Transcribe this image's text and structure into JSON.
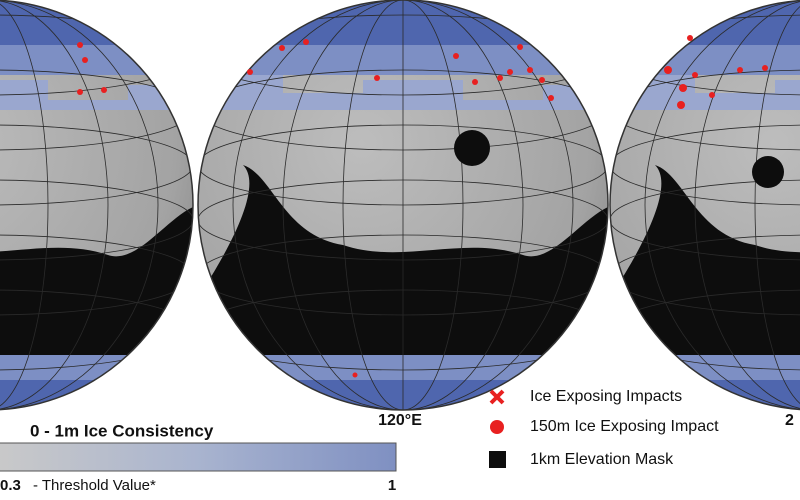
{
  "labels": {
    "longitude_center": "120°E",
    "longitude_right": "2"
  },
  "colorbar": {
    "title": "0 - 1m Ice Consistency",
    "min_label": "0.3",
    "min_text": "- Threshold Value*",
    "max_label": "1"
  },
  "legend": {
    "items": [
      {
        "label": "Ice Exposing Impacts"
      },
      {
        "label": "150m Ice Exposing Impact"
      },
      {
        "label": "1km Elevation Mask"
      }
    ]
  }
}
